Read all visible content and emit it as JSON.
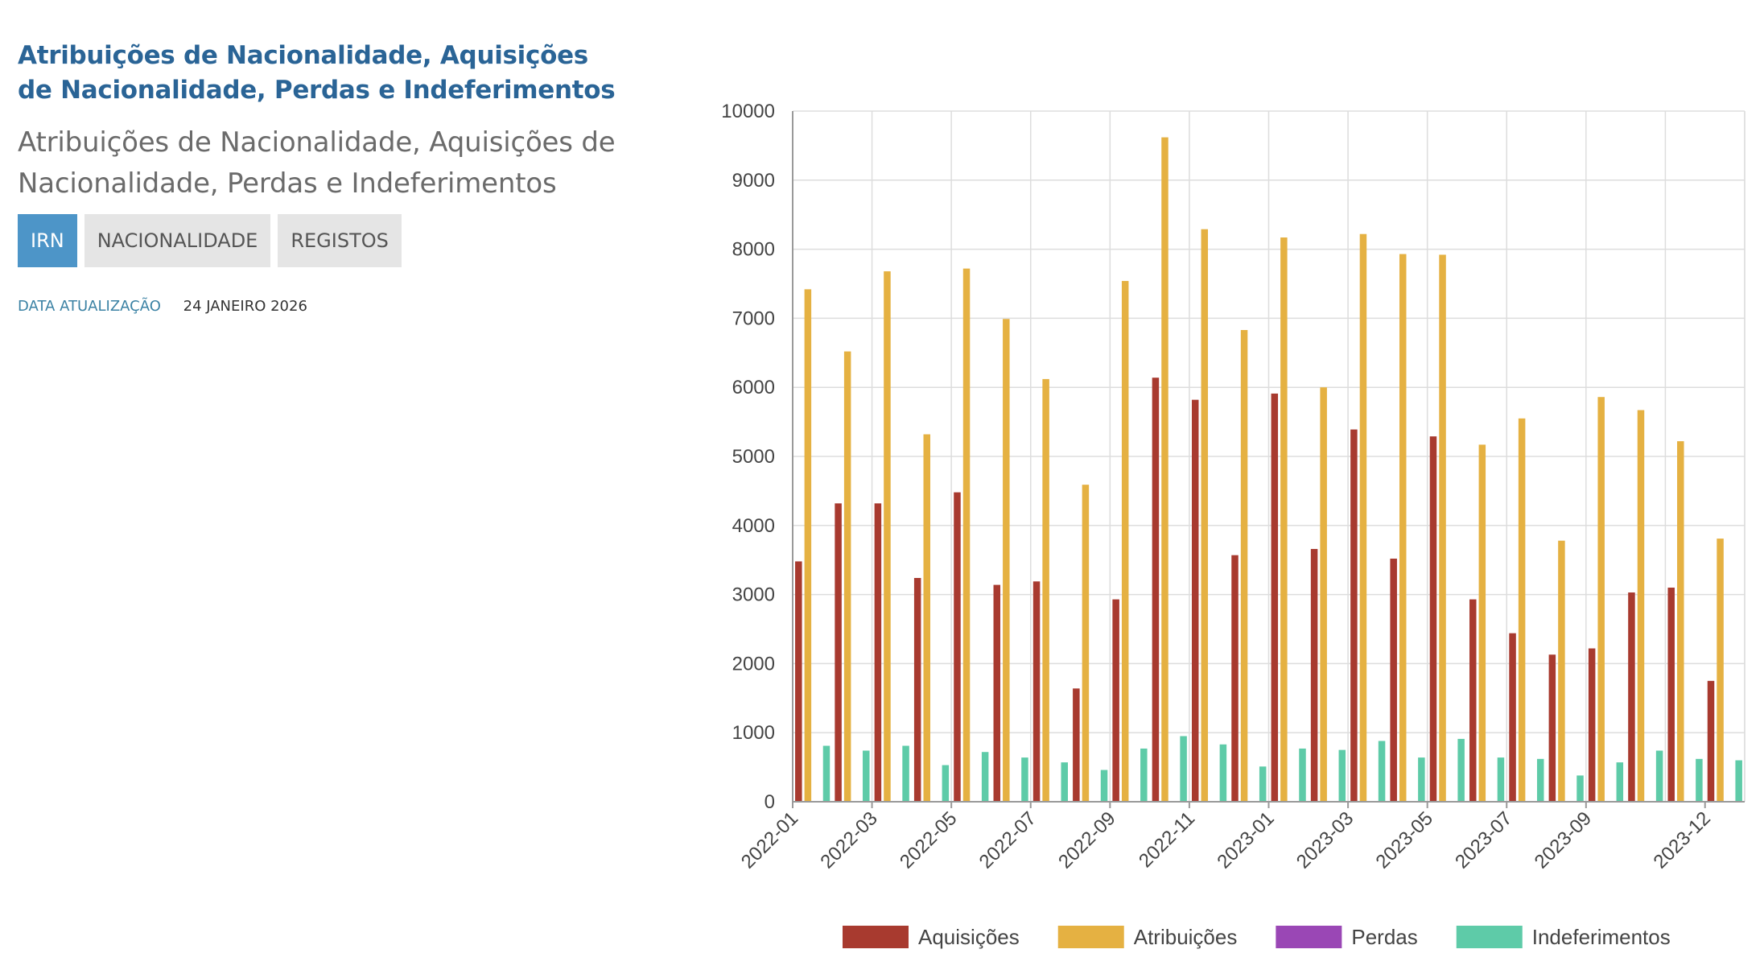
{
  "header": {
    "title": "Atribuições de Nacionalidade, Aquisições de Nacionalidade, Perdas e Indeferimentos",
    "title_lines": [
      "Atribuições de Nacionalidade, Aquisições",
      "de Nacionalidade, Perdas e Indeferimentos"
    ],
    "subtitle_lines": [
      "Atribuições de Nacionalidade, Aquisições de",
      "Nacionalidade, Perdas e Indeferimentos"
    ]
  },
  "tags": [
    {
      "label": "IRN",
      "active": true
    },
    {
      "label": "NACIONALIDADE",
      "active": false
    },
    {
      "label": "REGISTOS",
      "active": false
    }
  ],
  "meta": {
    "label": "DATA ATUALIZAÇÃO",
    "value": "24 JANEIRO 2026"
  },
  "chart_data": {
    "type": "bar",
    "categories": [
      "2022-01",
      "2022-02",
      "2022-03",
      "2022-04",
      "2022-05",
      "2022-06",
      "2022-07",
      "2022-08",
      "2022-09",
      "2022-10",
      "2022-11",
      "2022-12",
      "2023-01",
      "2023-02",
      "2023-03",
      "2023-04",
      "2023-05",
      "2023-06",
      "2023-07",
      "2023-08",
      "2023-09",
      "2023-10",
      "2023-11",
      "2023-12"
    ],
    "x_tick_labels": [
      "2022-01",
      "2022-03",
      "2022-05",
      "2022-07",
      "2022-09",
      "2022-11",
      "2023-01",
      "2023-03",
      "2023-05",
      "2023-07",
      "2023-09",
      "2023-12"
    ],
    "series": [
      {
        "name": "Aquisições",
        "color": "#a83a2f",
        "values": [
          3480,
          4320,
          4320,
          3240,
          4480,
          3140,
          3190,
          1640,
          2930,
          6140,
          5820,
          3570,
          5910,
          3660,
          5390,
          3520,
          5290,
          2930,
          2440,
          2130,
          2220,
          3030,
          3100,
          1750
        ]
      },
      {
        "name": "Atribuições",
        "color": "#e5b142",
        "values": [
          7420,
          6520,
          7680,
          5320,
          7720,
          6990,
          6120,
          4590,
          7540,
          9620,
          8290,
          6830,
          8170,
          6000,
          8220,
          7930,
          7920,
          5170,
          5550,
          3780,
          5860,
          5670,
          5220,
          3810
        ]
      },
      {
        "name": "Perdas",
        "color": "#9a47b5",
        "values": [
          0,
          0,
          0,
          0,
          0,
          0,
          0,
          0,
          0,
          0,
          0,
          0,
          0,
          0,
          0,
          0,
          0,
          0,
          0,
          0,
          0,
          0,
          0,
          0
        ]
      },
      {
        "name": "Indeferimentos",
        "color": "#5ecba8",
        "values": [
          810,
          740,
          810,
          530,
          720,
          640,
          570,
          460,
          770,
          950,
          830,
          510,
          770,
          750,
          880,
          640,
          910,
          640,
          620,
          380,
          570,
          740,
          620,
          600
        ]
      }
    ],
    "title": "",
    "xlabel": "",
    "ylabel": "",
    "ylim": [
      0,
      10000
    ],
    "yticks": [
      0,
      1000,
      2000,
      3000,
      4000,
      5000,
      6000,
      7000,
      8000,
      9000,
      10000
    ],
    "grid": true,
    "legend": "bottom"
  }
}
